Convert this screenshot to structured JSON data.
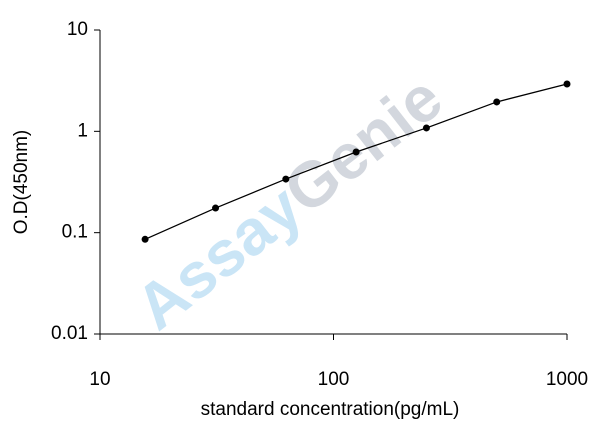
{
  "chart_data": {
    "type": "line",
    "xlabel": "standard concentration(pg/mL)",
    "ylabel": "O.D(450nm)",
    "watermark": [
      "Assay",
      "Genie"
    ],
    "x": [
      15.6,
      31.25,
      62.5,
      125,
      250,
      500,
      1000
    ],
    "series": [
      {
        "color": "#000000",
        "values": [
          0.086,
          0.175,
          0.338,
          0.625,
          1.08,
          1.95,
          2.93
        ]
      }
    ],
    "xscale": "log",
    "yscale": "log",
    "xlim": [
      10,
      1000
    ],
    "ylim": [
      0.01,
      10
    ],
    "xticks": [
      10,
      100,
      1000
    ],
    "yticks": [
      0.01,
      0.1,
      1,
      10
    ]
  }
}
